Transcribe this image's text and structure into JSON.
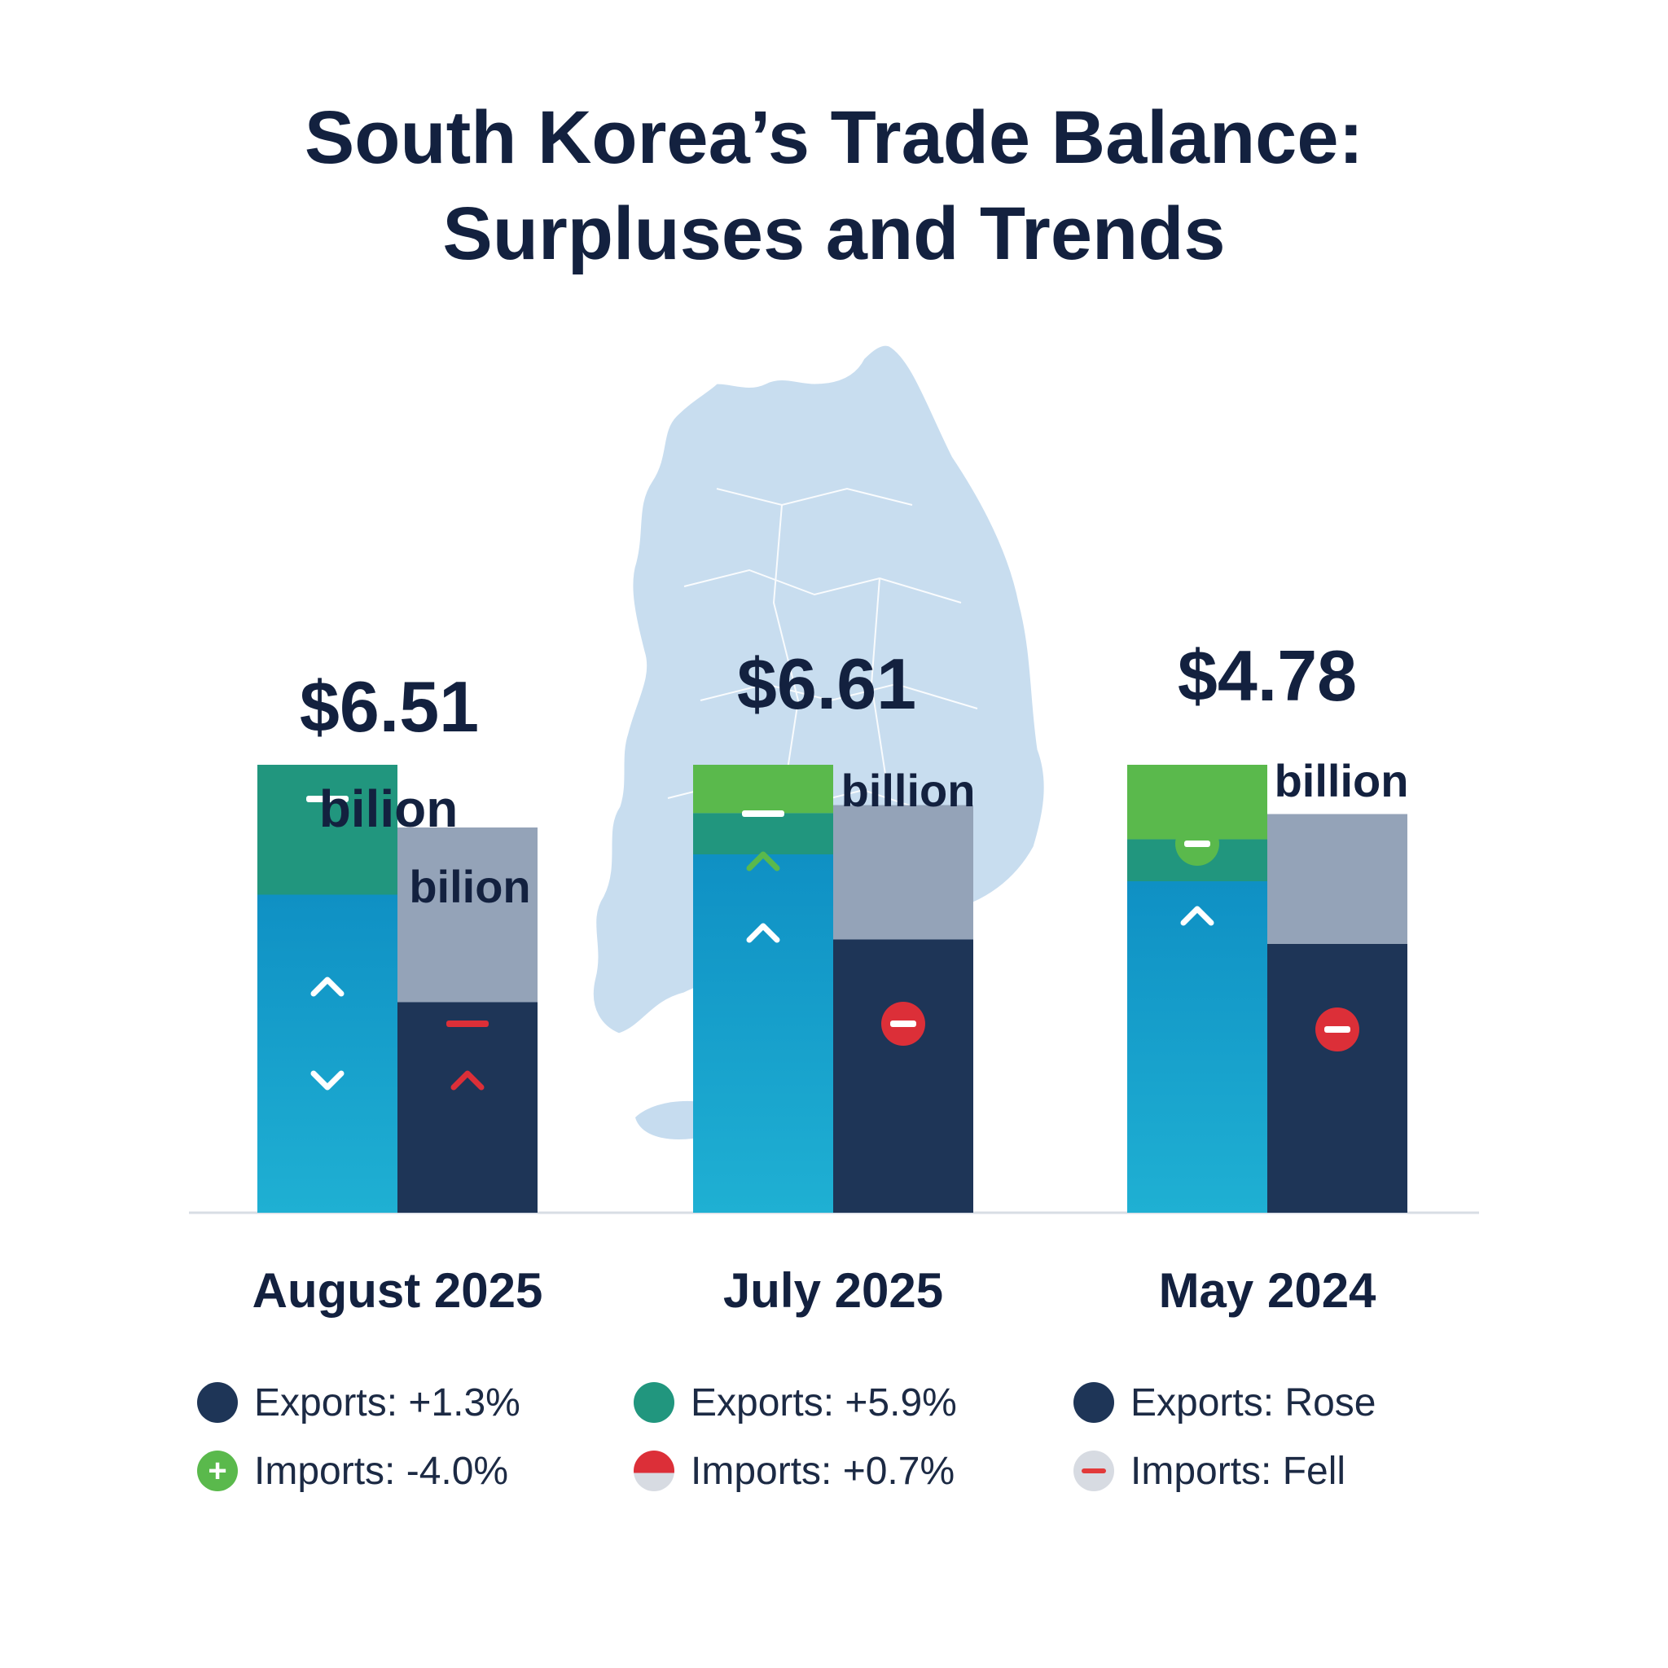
{
  "title_line1": "South Korea’s Trade Balance:",
  "title_line2": "Surpluses and Trends",
  "colors": {
    "navy": "#1e3557",
    "exports_blue": "#149dc8",
    "teal": "#21967e",
    "green": "#5ab94c",
    "gray": "#94a3b8",
    "map": "#c6dcef",
    "red": "#dc2f38",
    "title": "#13213f"
  },
  "chart_data": {
    "type": "bar",
    "title": "South Korea’s Trade Balance: Surpluses and Trends",
    "xlabel": "",
    "ylabel": "",
    "categories": [
      "August 2025",
      "July 2025",
      "May 2024"
    ],
    "surplus_labels": [
      {
        "amount": "$6.51",
        "unit": "bilion",
        "unit2": "bilion"
      },
      {
        "amount": "$6.61",
        "unit": "billion"
      },
      {
        "amount": "$4.78",
        "unit": "billion"
      }
    ],
    "series": [
      {
        "name": "Exports",
        "values": [
          100,
          100,
          100
        ]
      },
      {
        "name": "Imports",
        "values": [
          86,
          91,
          89
        ]
      }
    ],
    "surplus_values": [
      6.51,
      6.61,
      4.78
    ],
    "export_bar_segments": [
      {
        "base": 71,
        "upper": 29
      },
      {
        "base": 80,
        "upper": 20
      },
      {
        "base": 74,
        "upper": 26
      }
    ],
    "import_bar_segments": [
      {
        "dark": 47,
        "light": 39
      },
      {
        "dark": 61,
        "light": 30
      },
      {
        "dark": 60,
        "light": 29
      }
    ],
    "ylim": [
      0,
      130
    ],
    "grid": false,
    "legend_position": "bottom"
  },
  "legend": [
    [
      {
        "text": "Exports: +1.3%",
        "icon": "navy-dot-icon",
        "color": "#1e3557"
      },
      {
        "text": "Imports: -4.0%",
        "icon": "green-plus-icon",
        "color": "#5ab94c"
      }
    ],
    [
      {
        "text": "Exports: +5.9%",
        "icon": "teal-dot-icon",
        "color": "#21967e"
      },
      {
        "text": "Imports: +0.7%",
        "icon": "red-half-dot-icon",
        "color": "#dc2f38"
      }
    ],
    [
      {
        "text": "Exports: Rose",
        "icon": "navy-dot-icon",
        "color": "#1e3557"
      },
      {
        "text": "Imports: Fell",
        "icon": "gray-minus-icon",
        "color": "#d7dbe2"
      }
    ]
  ]
}
